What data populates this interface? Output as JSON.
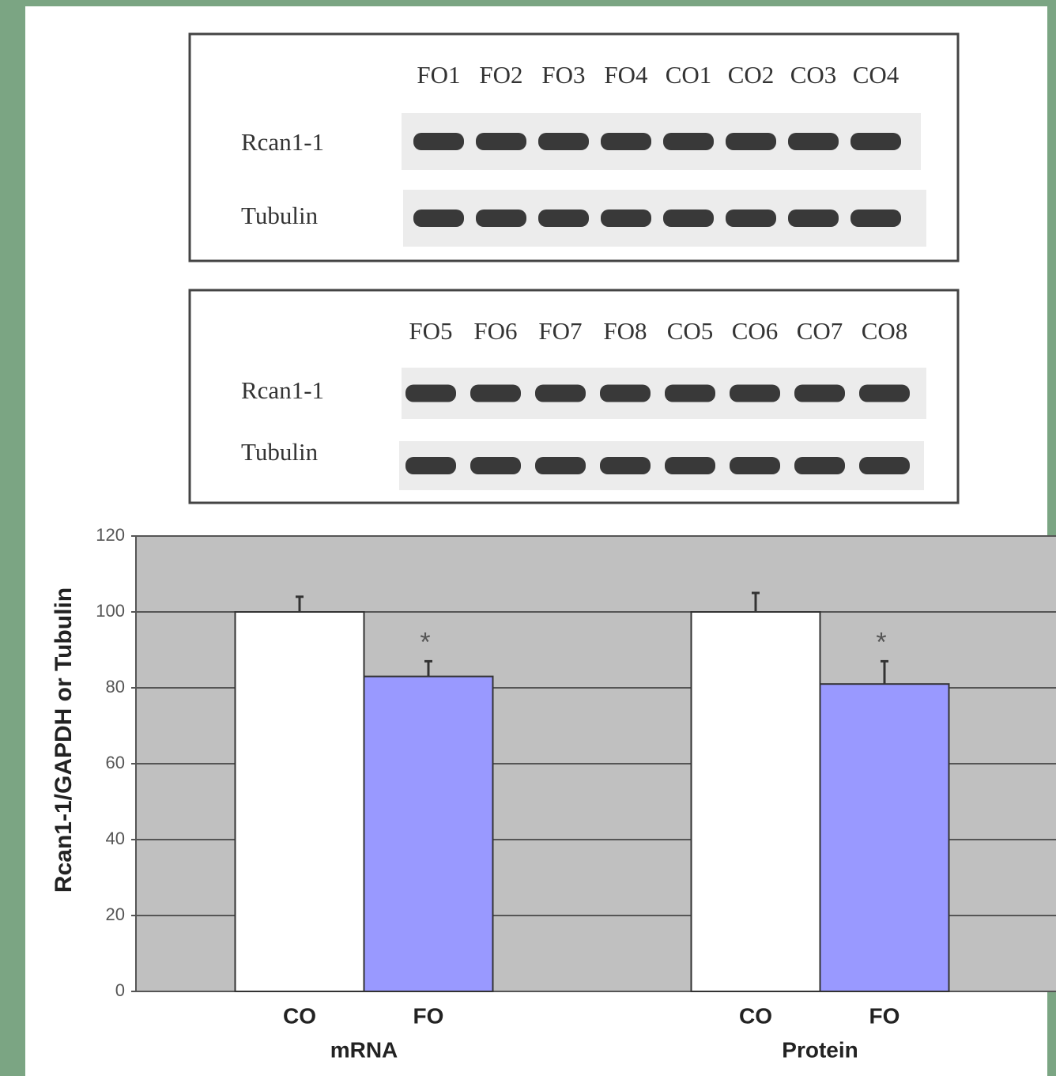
{
  "blots": [
    {
      "lanes": [
        "FO1",
        "FO2",
        "FO3",
        "FO4",
        "CO1",
        "CO2",
        "CO3",
        "CO4"
      ],
      "rows": [
        "Rcan1-1",
        "Tubulin"
      ]
    },
    {
      "lanes": [
        "FO5",
        "FO6",
        "FO7",
        "FO8",
        "CO5",
        "CO6",
        "CO7",
        "CO8"
      ],
      "rows": [
        "Rcan1-1",
        "Tubulin"
      ]
    }
  ],
  "chart_data": {
    "type": "bar",
    "y_label": "Rcan1-1/GAPDH or Tubulin",
    "categories": [
      "mRNA",
      "Protein"
    ],
    "series": [
      {
        "name": "CO",
        "color": "#ffffff",
        "values": [
          100,
          100
        ],
        "errors": [
          4,
          5
        ]
      },
      {
        "name": "FO",
        "color": "#9999ff",
        "values": [
          83,
          81
        ],
        "errors": [
          4,
          6
        ],
        "significance": [
          "*",
          "*"
        ]
      }
    ],
    "ylim": [
      0,
      120
    ],
    "yticks": [
      0,
      20,
      40,
      60,
      80,
      100,
      120
    ],
    "grid": true
  }
}
